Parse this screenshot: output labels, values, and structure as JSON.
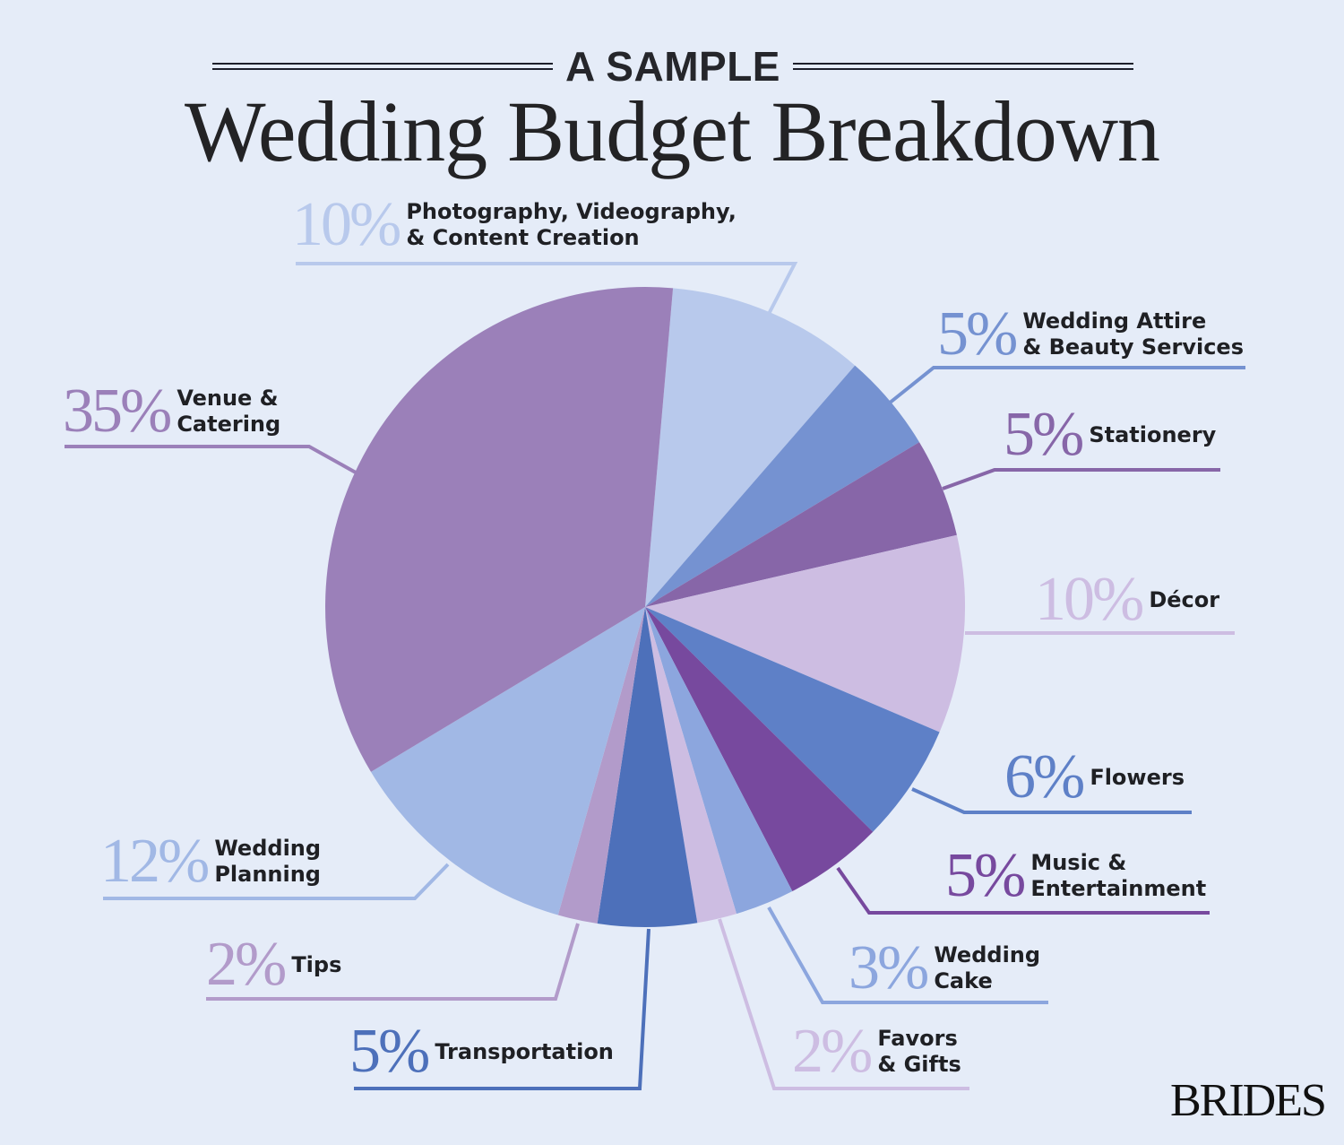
{
  "header": {
    "eyebrow": "A SAMPLE",
    "title": "Wedding Budget Breakdown"
  },
  "brand": "BRIDES",
  "colors": {
    "background": "#e5ecf8",
    "text": "#232325"
  },
  "labels": [
    {
      "pct": "10%",
      "line1": "Photography, Videography,",
      "line2": "& Content Creation",
      "color": "#b8c9ec"
    },
    {
      "pct": "5%",
      "line1": "Wedding Attire",
      "line2": "& Beauty Services",
      "color": "#7592d1"
    },
    {
      "pct": "5%",
      "line1": "Stationery",
      "line2": "",
      "color": "#8766a8"
    },
    {
      "pct": "10%",
      "line1": "Décor",
      "line2": "",
      "color": "#cdbde2"
    },
    {
      "pct": "6%",
      "line1": "Flowers",
      "line2": "",
      "color": "#5e80c7"
    },
    {
      "pct": "5%",
      "line1": "Music &",
      "line2": "Entertainment",
      "color": "#77499e"
    },
    {
      "pct": "3%",
      "line1": "Wedding",
      "line2": "Cake",
      "color": "#8ca6de"
    },
    {
      "pct": "2%",
      "line1": "Favors",
      "line2": "& Gifts",
      "color": "#cdbde2"
    },
    {
      "pct": "5%",
      "line1": "Transportation",
      "line2": "",
      "color": "#4d70ba"
    },
    {
      "pct": "2%",
      "line1": "Tips",
      "line2": "",
      "color": "#b29bca"
    },
    {
      "pct": "12%",
      "line1": "Wedding",
      "line2": "Planning",
      "color": "#a1b8e5"
    },
    {
      "pct": "35%",
      "line1": "Venue &",
      "line2": "Catering",
      "color": "#9b80b9"
    }
  ],
  "chart_data": {
    "type": "pie",
    "title": "A Sample Wedding Budget Breakdown",
    "unit": "%",
    "categories": [
      "Photography, Videography, & Content Creation",
      "Wedding Attire & Beauty Services",
      "Stationery",
      "Décor",
      "Flowers",
      "Music & Entertainment",
      "Wedding Cake",
      "Favors & Gifts",
      "Transportation",
      "Tips",
      "Wedding Planning",
      "Venue & Catering"
    ],
    "values": [
      10,
      5,
      5,
      10,
      6,
      5,
      3,
      2,
      5,
      2,
      12,
      35
    ],
    "colors": [
      "#b8c9ec",
      "#7592d1",
      "#8766a8",
      "#cdbde2",
      "#5e80c7",
      "#77499e",
      "#8ca6de",
      "#cdbde2",
      "#4d70ba",
      "#b29bca",
      "#a1b8e5",
      "#9b80b9"
    ],
    "start_angle_deg_clockwise_from_top": 5,
    "legend": "callout labels with leader lines around pie"
  }
}
